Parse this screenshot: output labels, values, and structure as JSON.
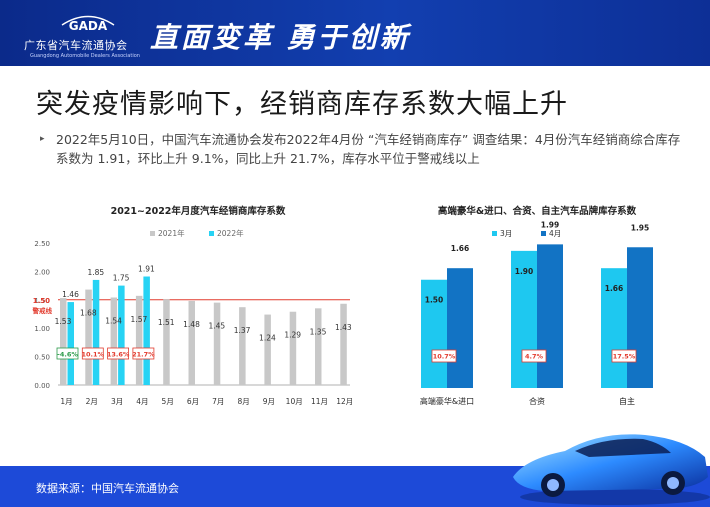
{
  "header": {
    "logo_mark": "GADA",
    "org_name": "广东省汽车流通协会",
    "org_name_en": "Guangdong Automobile Dealers Association",
    "slogan": "直面变革 勇于创新"
  },
  "title": "突发疫情影响下，经销商库存系数大幅上升",
  "summary": "2022年5月10日，中国汽车流通协会发布2022年4月份 “汽车经销商库存” 调查结果：4月份汽车经销商综合库存系数为 1.91，环比上升 9.1%，同比上升 21.7%，库存水平位于警戒线以上",
  "footer": {
    "source": "数据来源：中国汽车流通协会"
  },
  "colors": {
    "gray_bar": "#c8c8c8",
    "cyan_bar": "#27d3f4",
    "light_blue": "#1ec8f0",
    "dark_blue": "#1273c4",
    "warning": "#e23b2e",
    "header": "#0b2a8a",
    "footer": "#1d4ad8"
  },
  "chart_data": [
    {
      "type": "bar",
      "title": "2021~2022年月度汽车经销商库存系数",
      "categories": [
        "1月",
        "2月",
        "3月",
        "4月",
        "5月",
        "6月",
        "7月",
        "8月",
        "9月",
        "10月",
        "11月",
        "12月"
      ],
      "series": [
        {
          "name": "2021年",
          "values": [
            1.53,
            1.68,
            1.54,
            1.57,
            1.51,
            1.48,
            1.45,
            1.37,
            1.24,
            1.29,
            1.35,
            1.43
          ]
        },
        {
          "name": "2022年",
          "values": [
            1.46,
            1.85,
            1.75,
            1.91,
            null,
            null,
            null,
            null,
            null,
            null,
            null,
            null
          ]
        }
      ],
      "yticks": [
        "0.00",
        "0.50",
        "1.00",
        "1.50",
        "2.00",
        "2.50"
      ],
      "ylim": [
        0,
        2.5
      ],
      "reference_line": {
        "value": 1.5,
        "value_label": "1.50",
        "label": "警戒线"
      },
      "yoy_labels": [
        "-4.6%",
        "10.1%",
        "13.6%",
        "21.7%"
      ],
      "grid": false,
      "legend": "top"
    },
    {
      "type": "bar",
      "title": "高端豪华&进口、合资、自主汽车品牌库存系数",
      "categories": [
        "高端豪华&进口",
        "合资",
        "自主"
      ],
      "series": [
        {
          "name": "3月",
          "values": [
            1.5,
            1.9,
            1.66
          ]
        },
        {
          "name": "4月",
          "values": [
            1.66,
            1.99,
            1.95
          ]
        }
      ],
      "change_labels": [
        "10.7%",
        "4.7%",
        "17.5%"
      ],
      "grid": false,
      "legend": "top-left"
    }
  ]
}
